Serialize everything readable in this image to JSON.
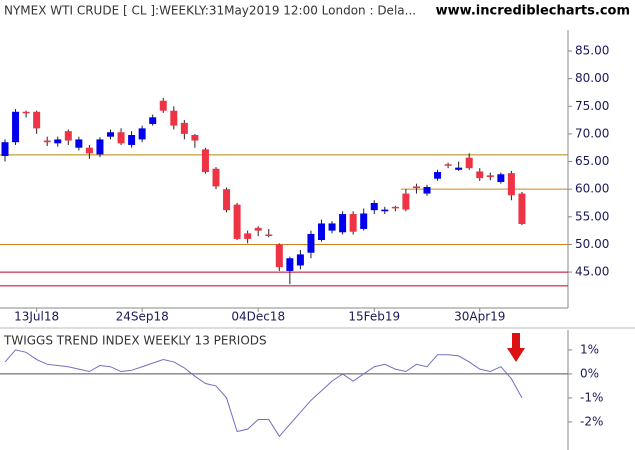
{
  "chart_data": [
    {
      "type": "candlestick",
      "title": "NYMEX WTI CRUDE [ CL ]:WEEKLY:31May2019 12:00 London : Dela...",
      "source": "www.incrediblecharts.com",
      "categories": [
        null,
        null,
        null,
        "13Jul18",
        null,
        null,
        null,
        null,
        null,
        null,
        null,
        null,
        null,
        "24Sep18",
        null,
        null,
        null,
        null,
        null,
        null,
        null,
        null,
        null,
        null,
        "04Dec18",
        null,
        null,
        null,
        null,
        null,
        null,
        null,
        null,
        null,
        null,
        "15Feb19",
        null,
        null,
        null,
        null,
        null,
        null,
        null,
        null,
        null,
        "30Apr19",
        null,
        null,
        null,
        null
      ],
      "open": [
        66,
        68.5,
        74,
        74,
        68.8,
        68.3,
        70.5,
        67.5,
        67.5,
        66.3,
        69.5,
        70.3,
        68,
        69,
        71.8,
        76,
        74.2,
        72,
        69.8,
        67.2,
        63.7,
        60,
        57.2,
        52,
        53,
        51.8,
        50,
        45.2,
        46.2,
        48.5,
        50.8,
        52.5,
        52.2,
        55.5,
        52.8,
        56.2,
        56,
        56.8,
        59.2,
        60.5,
        59.2,
        61.9,
        64.5,
        63.5,
        65.7,
        63.2,
        62.5,
        61.3,
        62.9,
        59.2
      ],
      "high": [
        69,
        74.5,
        74.2,
        74.2,
        69.5,
        69.5,
        70.8,
        69.5,
        68,
        69.4,
        70.8,
        71,
        70.5,
        71.5,
        73.5,
        76.5,
        75,
        72.5,
        70,
        67.5,
        64,
        60.3,
        57.5,
        52.5,
        53.3,
        52.8,
        50.2,
        47.8,
        49,
        52.5,
        54.5,
        54.2,
        56,
        56,
        56.5,
        58,
        56.8,
        57,
        60,
        61,
        60.8,
        63.5,
        64.8,
        65,
        66.5,
        63.8,
        63,
        63,
        63.3,
        59.5
      ],
      "low": [
        65,
        68,
        73,
        70,
        67.8,
        67.7,
        68,
        67,
        65.5,
        65.8,
        69,
        68,
        67.5,
        68.5,
        71.5,
        73.8,
        70.8,
        69,
        67.5,
        62.8,
        60,
        55.8,
        50.8,
        50.2,
        51.5,
        51.3,
        45.2,
        42.8,
        45.5,
        47.5,
        50.5,
        52,
        51.8,
        51.8,
        52.5,
        55.5,
        55.5,
        56,
        56,
        59.2,
        58.8,
        61.5,
        63.8,
        63.3,
        63.5,
        61.5,
        61.6,
        61,
        58,
        53.5
      ],
      "close": [
        68.5,
        74,
        73.8,
        71,
        68.5,
        69,
        68.8,
        69,
        66.5,
        69,
        70.3,
        68.3,
        69.8,
        71,
        73,
        74.2,
        71.5,
        70,
        68.8,
        63.1,
        60.5,
        56.2,
        51,
        51,
        52.5,
        51.6,
        45.9,
        47.5,
        48.2,
        51.9,
        53.8,
        53.8,
        55.5,
        52.3,
        55.6,
        57.5,
        56.3,
        56.6,
        56.3,
        60.2,
        60.4,
        63.1,
        64.3,
        63.9,
        63.8,
        62,
        62.2,
        62.7,
        58.9,
        53.7
      ],
      "up_color": "#0000ee",
      "down_color": "#ee3344",
      "ylim": [
        38.5,
        88.8
      ],
      "yticks": [
        {
          "value": 45,
          "label": "45.00"
        },
        {
          "value": 50,
          "label": "50.00"
        },
        {
          "value": 55,
          "label": "55.00"
        },
        {
          "value": 60,
          "label": "60.00"
        },
        {
          "value": 65,
          "label": "65.00"
        },
        {
          "value": 70,
          "label": "70.00"
        },
        {
          "value": 75,
          "label": "75.00"
        },
        {
          "value": 80,
          "label": "80.00"
        },
        {
          "value": 85,
          "label": "85.00"
        }
      ],
      "levels": [
        {
          "value": 66.2,
          "color": "#b8860b",
          "from": 0
        },
        {
          "value": 60,
          "color": "#d08020",
          "from": 38
        },
        {
          "value": 50,
          "color": "#d08020",
          "from": 0
        },
        {
          "value": 45,
          "color": "#c00020",
          "from": 0
        },
        {
          "value": 42.5,
          "color": "#c00020",
          "from": 0
        }
      ]
    },
    {
      "type": "line",
      "title": "TWIGGS TREND INDEX WEEKLY 13 PERIODS",
      "values": [
        0.5,
        1.0,
        0.9,
        0.6,
        0.4,
        0.35,
        0.3,
        0.2,
        0.1,
        0.35,
        0.3,
        0.1,
        0.15,
        0.3,
        0.45,
        0.6,
        0.5,
        0.25,
        -0.1,
        -0.4,
        -0.5,
        -1.0,
        -2.4,
        -2.3,
        -1.9,
        -1.9,
        -2.6,
        -2.1,
        -1.6,
        -1.1,
        -0.7,
        -0.3,
        0.0,
        -0.3,
        0.0,
        0.3,
        0.4,
        0.2,
        0.1,
        0.4,
        0.3,
        0.8,
        0.8,
        0.75,
        0.5,
        0.2,
        0.1,
        0.3,
        -0.2,
        -1.0
      ],
      "color": "#7070c0",
      "ylim": [
        -3.17,
        1.83
      ],
      "yticks": [
        {
          "value": 1,
          "label": "1%"
        },
        {
          "value": 0,
          "label": "0%"
        },
        {
          "value": -1,
          "label": "-1%"
        },
        {
          "value": -2,
          "label": "-2%"
        }
      ]
    }
  ]
}
